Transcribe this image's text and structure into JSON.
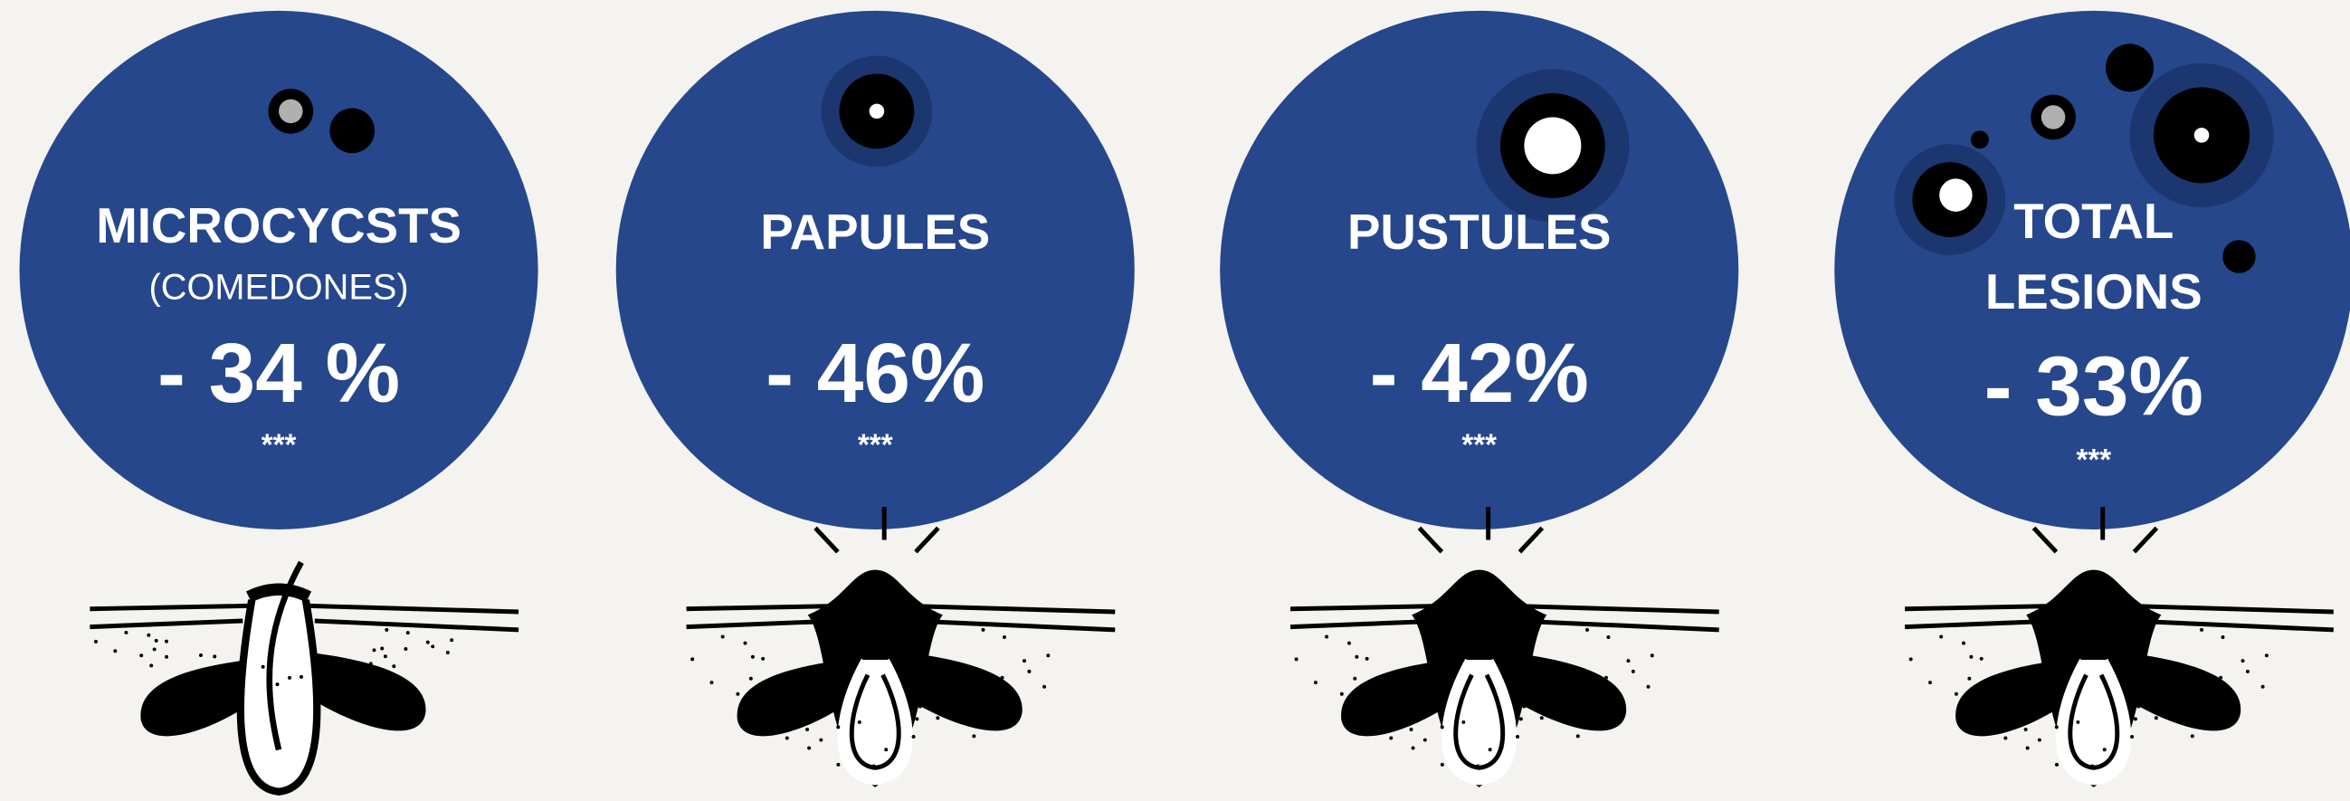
{
  "panels": [
    {
      "title": [
        "MICROCYCSTS"
      ],
      "subtitle": "(COMEDONES)",
      "value": "- 34 %",
      "significance": "***"
    },
    {
      "title": [
        "PAPULES"
      ],
      "value": "- 46%",
      "significance": "***"
    },
    {
      "title": [
        "PUSTULES"
      ],
      "value": "- 42%",
      "significance": "***"
    },
    {
      "title": [
        "TOTAL",
        "LESIONS"
      ],
      "value": "- 33%",
      "significance": "***"
    }
  ]
}
